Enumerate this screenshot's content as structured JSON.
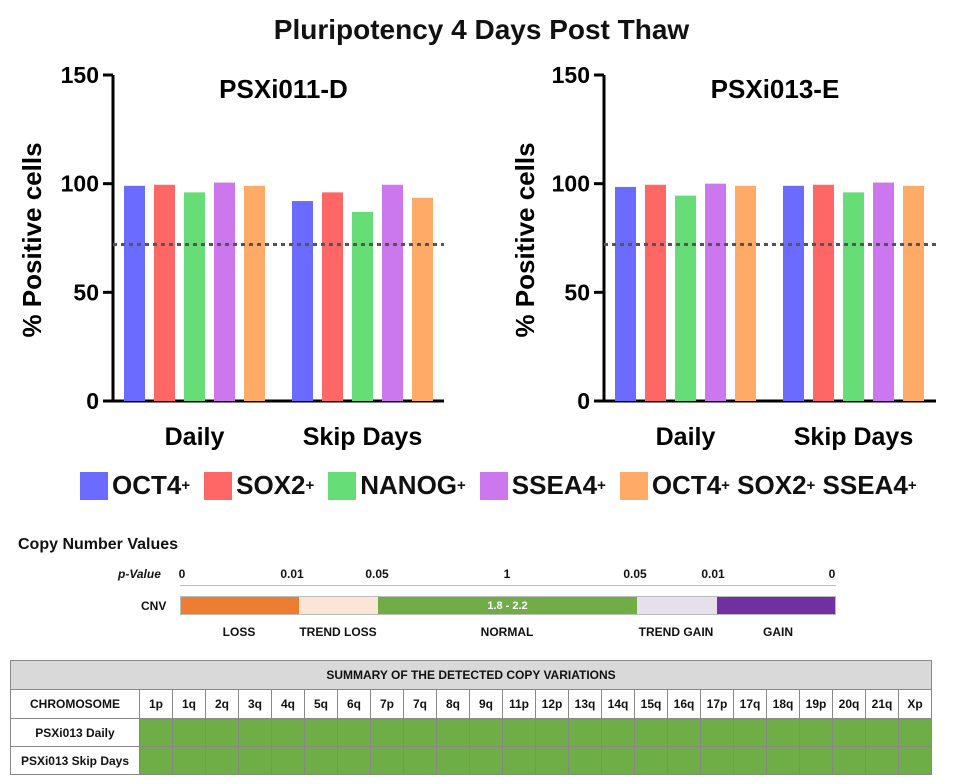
{
  "figure_title": "Pluripotency 4 Days Post Thaw",
  "chart_data": [
    {
      "type": "bar",
      "title": "PSXi011-D",
      "ylabel": "% Positive cells",
      "ylim": [
        0,
        150
      ],
      "yticks": [
        "0",
        "50",
        "100",
        "150"
      ],
      "threshold": 72,
      "categories": [
        "Daily",
        "Skip Days"
      ],
      "series": [
        {
          "name": "OCT4",
          "color": "#6b6bff",
          "values": [
            99,
            92
          ]
        },
        {
          "name": "SOX2",
          "color": "#ff6666",
          "values": [
            99.5,
            96
          ]
        },
        {
          "name": "NANOG",
          "color": "#66dd77",
          "values": [
            96,
            87
          ]
        },
        {
          "name": "SSEA4",
          "color": "#cc77ee",
          "values": [
            100.5,
            99.5
          ]
        },
        {
          "name": "OCT4+ SOX2+ SSEA4+",
          "color": "#ffaa66",
          "values": [
            99,
            93.5
          ]
        }
      ]
    },
    {
      "type": "bar",
      "title": "PSXi013-E",
      "ylabel": "% Positive cells",
      "ylim": [
        0,
        150
      ],
      "yticks": [
        "0",
        "50",
        "100",
        "150"
      ],
      "threshold": 72,
      "categories": [
        "Daily",
        "Skip Days"
      ],
      "series": [
        {
          "name": "OCT4",
          "color": "#6b6bff",
          "values": [
            98.5,
            99
          ]
        },
        {
          "name": "SOX2",
          "color": "#ff6666",
          "values": [
            99.5,
            99.5
          ]
        },
        {
          "name": "NANOG",
          "color": "#66dd77",
          "values": [
            94.5,
            96
          ]
        },
        {
          "name": "SSEA4",
          "color": "#cc77ee",
          "values": [
            100,
            100.5
          ]
        },
        {
          "name": "OCT4+ SOX2+ SSEA4+",
          "color": "#ffaa66",
          "values": [
            99,
            99
          ]
        }
      ]
    }
  ],
  "legend": [
    {
      "label": "OCT4",
      "sup": "+",
      "color": "#6b6bff"
    },
    {
      "label": "SOX2",
      "sup": "+",
      "color": "#ff6666"
    },
    {
      "label": "NANOG",
      "sup": "+",
      "color": "#66dd77"
    },
    {
      "label": "SSEA4",
      "sup": "+",
      "color": "#cc77ee"
    },
    {
      "label": "OCT4",
      "sup": "+",
      "label2": "SOX2",
      "sup2": "+",
      "label3": "SSEA4",
      "sup3": "+",
      "color": "#ffaa66"
    }
  ],
  "cnv": {
    "title": "Copy Number Values",
    "pvalue_label": "p-Value",
    "pvalue_ticks": [
      "0",
      "0.01",
      "0.05",
      "1",
      "0.05",
      "0.01",
      "0"
    ],
    "cnv_label": "CNV",
    "segments": [
      {
        "label": "LOSS",
        "color": "#ed7d31",
        "inner": ""
      },
      {
        "label": "TREND LOSS",
        "color": "#fbe5d6",
        "inner": ""
      },
      {
        "label": "NORMAL",
        "color": "#70ad47",
        "inner": "1.8 - 2.2"
      },
      {
        "label": "TREND GAIN",
        "color": "#e6e0ec",
        "inner": ""
      },
      {
        "label": "GAIN",
        "color": "#7030a0",
        "inner": ""
      }
    ]
  },
  "summary": {
    "title": "SUMMARY OF THE DETECTED COPY VARIATIONS",
    "chromosome_header": "CHROMOSOME",
    "chromosomes": [
      "1p",
      "1q",
      "2q",
      "3q",
      "4q",
      "5q",
      "6q",
      "7p",
      "7q",
      "8q",
      "9q",
      "11p",
      "12p",
      "13q",
      "14q",
      "15q",
      "16q",
      "17p",
      "17q",
      "18q",
      "19p",
      "20q",
      "21q",
      "Xp"
    ],
    "rows": [
      "PSXi013 Daily",
      "PSXi013 Skip Days"
    ],
    "status_color": "#6fad47"
  }
}
